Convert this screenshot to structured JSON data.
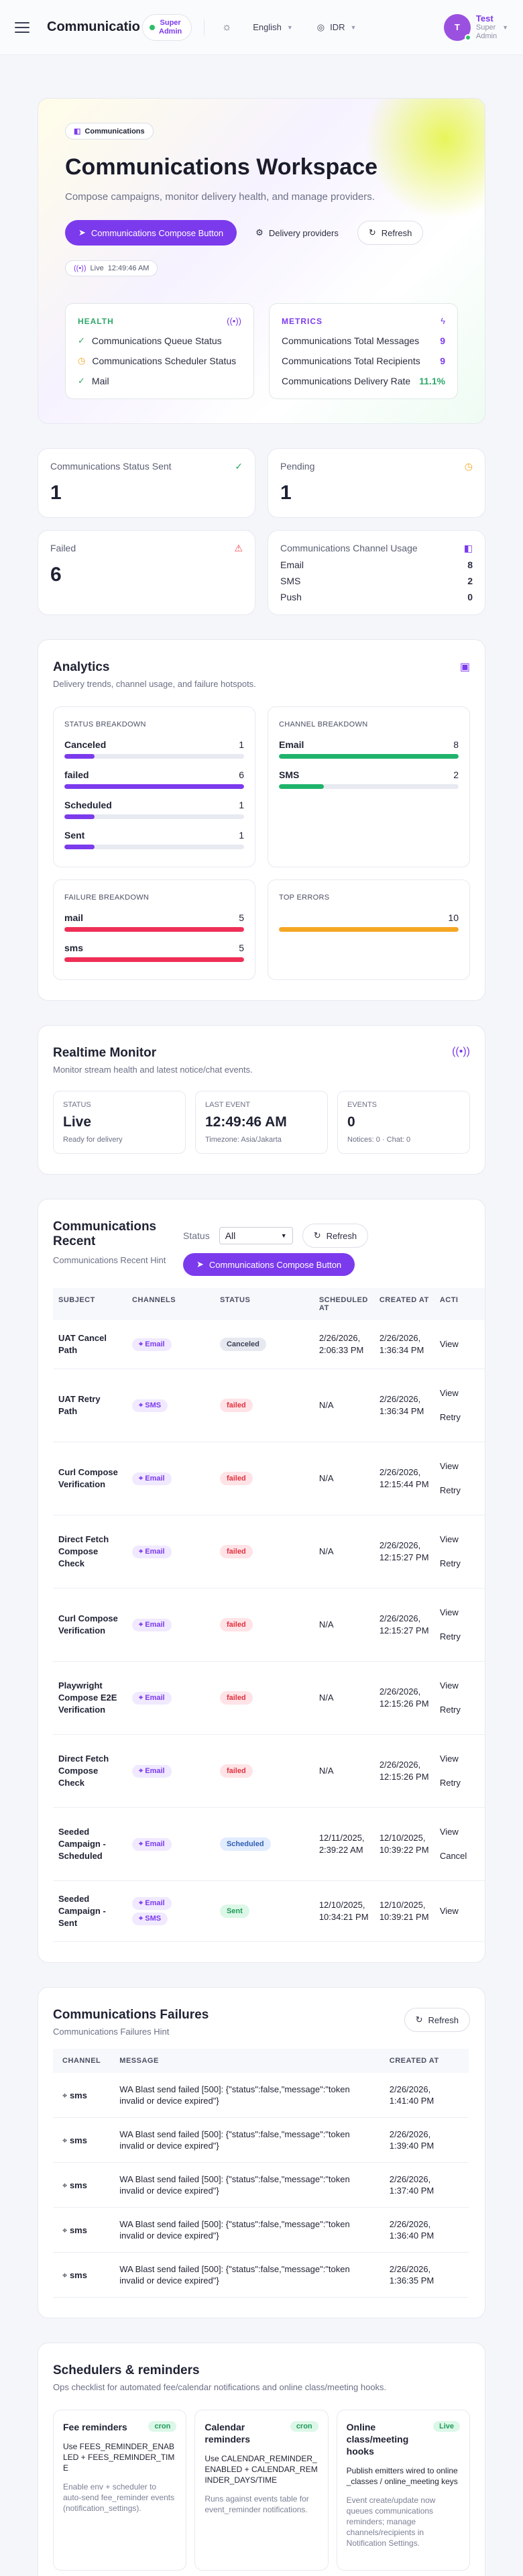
{
  "topbar": {
    "brand": "Communications",
    "role_line1": "Super",
    "role_line2": "Admin",
    "language": "English",
    "currency": "IDR",
    "avatar_letter": "T",
    "user_name": "Test",
    "user_role_line1": "Super",
    "user_role_line2": "Admin"
  },
  "hero": {
    "chip": "Communications",
    "title": "Communications Workspace",
    "subtitle": "Compose campaigns, monitor delivery health, and manage providers.",
    "compose_label": "Communications Compose Button",
    "providers_label": "Delivery providers",
    "refresh_label": "Refresh",
    "live_label": "Live",
    "live_time": "12:49:46 AM"
  },
  "health": {
    "title": "HEALTH",
    "items": [
      "Communications Queue Status",
      "Communications Scheduler Status",
      "Mail"
    ]
  },
  "metrics": {
    "title": "METRICS",
    "items": [
      {
        "label": "Communications Total Messages",
        "value": "9"
      },
      {
        "label": "Communications Total Recipients",
        "value": "9"
      },
      {
        "label": "Communications Delivery Rate",
        "value": "11.1%"
      }
    ]
  },
  "stats": {
    "sent_label": "Communications Status Sent",
    "sent_value": "1",
    "pending_label": "Pending",
    "pending_value": "1",
    "failed_label": "Failed",
    "failed_value": "6",
    "usage_label": "Communications Channel Usage",
    "usage": [
      {
        "label": "Email",
        "value": "8"
      },
      {
        "label": "SMS",
        "value": "2"
      },
      {
        "label": "Push",
        "value": "0"
      }
    ]
  },
  "analytics": {
    "title": "Analytics",
    "hint": "Delivery trends, channel usage, and failure hotspots.",
    "status_title": "STATUS BREAKDOWN",
    "status": [
      {
        "label": "Canceled",
        "value": 1,
        "max": 6
      },
      {
        "label": "failed",
        "value": 6,
        "max": 6
      },
      {
        "label": "Scheduled",
        "value": 1,
        "max": 6
      },
      {
        "label": "Sent",
        "value": 1,
        "max": 6
      }
    ],
    "channel_title": "CHANNEL BREAKDOWN",
    "channel": [
      {
        "label": "Email",
        "value": 8,
        "max": 8
      },
      {
        "label": "SMS",
        "value": 2,
        "max": 8
      }
    ],
    "failure_title": "FAILURE BREAKDOWN",
    "failure": [
      {
        "label": "mail",
        "value": 5,
        "max": 5
      },
      {
        "label": "sms",
        "value": 5,
        "max": 5
      }
    ],
    "errors_title": "TOP ERRORS",
    "errors": [
      {
        "label": "",
        "value": 10,
        "max": 10
      }
    ],
    "colors": {
      "status": "#7c3aed",
      "channel": "#1fb36b",
      "failure": "#ee2f56",
      "errors": "#f5a623"
    }
  },
  "monitor": {
    "title": "Realtime Monitor",
    "hint": "Monitor stream health and latest notice/chat events.",
    "status_k": "STATUS",
    "status_v": "Live",
    "status_s": "Ready for delivery",
    "last_k": "LAST EVENT",
    "last_v": "12:49:46 AM",
    "last_s": "Timezone: Asia/Jakarta",
    "events_k": "EVENTS",
    "events_v": "0",
    "events_s": "Notices: 0 · Chat: 0"
  },
  "recent": {
    "title": "Communications Recent",
    "hint": "Communications Recent Hint",
    "status_label": "Status",
    "status_value": "All",
    "refresh_label": "Refresh",
    "compose_label": "Communications Compose Button",
    "columns": [
      "SUBJECT",
      "CHANNELS",
      "STATUS",
      "SCHEDULED AT",
      "CREATED AT",
      "ACTI"
    ],
    "rows": [
      {
        "subject": "UAT Cancel Path",
        "channels": [
          "Email"
        ],
        "status": "Canceled",
        "scheduled": "2/26/2026, 2:06:33 PM",
        "created": "2/26/2026, 1:36:34 PM",
        "actions": [
          "View"
        ]
      },
      {
        "subject": "UAT Retry Path",
        "channels": [
          "SMS"
        ],
        "status": "failed",
        "scheduled": "N/A",
        "created": "2/26/2026, 1:36:34 PM",
        "actions": [
          "View",
          "Retry"
        ]
      },
      {
        "subject": "Curl Compose Verification",
        "channels": [
          "Email"
        ],
        "status": "failed",
        "scheduled": "N/A",
        "created": "2/26/2026, 12:15:44 PM",
        "actions": [
          "View",
          "Retry"
        ]
      },
      {
        "subject": "Direct Fetch Compose Check",
        "channels": [
          "Email"
        ],
        "status": "failed",
        "scheduled": "N/A",
        "created": "2/26/2026, 12:15:27 PM",
        "actions": [
          "View",
          "Retry"
        ]
      },
      {
        "subject": "Curl Compose Verification",
        "channels": [
          "Email"
        ],
        "status": "failed",
        "scheduled": "N/A",
        "created": "2/26/2026, 12:15:27 PM",
        "actions": [
          "View",
          "Retry"
        ]
      },
      {
        "subject": "Playwright Compose E2E Verification",
        "channels": [
          "Email"
        ],
        "status": "failed",
        "scheduled": "N/A",
        "created": "2/26/2026, 12:15:26 PM",
        "actions": [
          "View",
          "Retry"
        ]
      },
      {
        "subject": "Direct Fetch Compose Check",
        "channels": [
          "Email"
        ],
        "status": "failed",
        "scheduled": "N/A",
        "created": "2/26/2026, 12:15:26 PM",
        "actions": [
          "View",
          "Retry"
        ]
      },
      {
        "subject": "Seeded Campaign - Scheduled",
        "channels": [
          "Email"
        ],
        "status": "Scheduled",
        "scheduled": "12/11/2025, 2:39:22 AM",
        "created": "12/10/2025, 10:39:22 PM",
        "actions": [
          "View",
          "Cancel"
        ]
      },
      {
        "subject": "Seeded Campaign - Sent",
        "channels": [
          "Email",
          "SMS"
        ],
        "status": "Sent",
        "scheduled": "12/10/2025, 10:34:21 PM",
        "created": "12/10/2025, 10:39:21 PM",
        "actions": [
          "View"
        ]
      }
    ]
  },
  "failures": {
    "title": "Communications Failures",
    "hint": "Communications Failures Hint",
    "refresh_label": "Refresh",
    "columns": [
      "CHANNEL",
      "MESSAGE",
      "CREATED AT"
    ],
    "rows": [
      {
        "channel": "sms",
        "message": "WA Blast send failed [500]: {\"status\":false,\"message\":\"token invalid or device expired\"}",
        "created": "2/26/2026, 1:41:40 PM"
      },
      {
        "channel": "sms",
        "message": "WA Blast send failed [500]: {\"status\":false,\"message\":\"token invalid or device expired\"}",
        "created": "2/26/2026, 1:39:40 PM"
      },
      {
        "channel": "sms",
        "message": "WA Blast send failed [500]: {\"status\":false,\"message\":\"token invalid or device expired\"}",
        "created": "2/26/2026, 1:37:40 PM"
      },
      {
        "channel": "sms",
        "message": "WA Blast send failed [500]: {\"status\":false,\"message\":\"token invalid or device expired\"}",
        "created": "2/26/2026, 1:36:40 PM"
      },
      {
        "channel": "sms",
        "message": "WA Blast send failed [500]: {\"status\":false,\"message\":\"token invalid or device expired\"}",
        "created": "2/26/2026, 1:36:35 PM"
      }
    ]
  },
  "schedulers": {
    "title": "Schedulers & reminders",
    "hint": "Ops checklist for automated fee/calendar notifications and online class/meeting hooks.",
    "items": [
      {
        "title": "Fee reminders",
        "tag": "cron",
        "body": "Use FEES_REMINDER_ENABLED + FEES_REMINDER_TIME",
        "foot": "Enable env + scheduler to auto-send fee_reminder events (notification_settings)."
      },
      {
        "title": "Calendar reminders",
        "tag": "cron",
        "body": "Use CALENDAR_REMINDER_ENABLED + CALENDAR_REMINDER_DAYS/TIME",
        "foot": "Runs against events table for event_reminder notifications."
      },
      {
        "title": "Online class/meeting hooks",
        "tag": "Live",
        "body": "Publish emitters wired to online_classes / online_meeting keys",
        "foot": "Event create/update now queues communications reminders; manage channels/recipients in Notification Settings."
      }
    ]
  }
}
